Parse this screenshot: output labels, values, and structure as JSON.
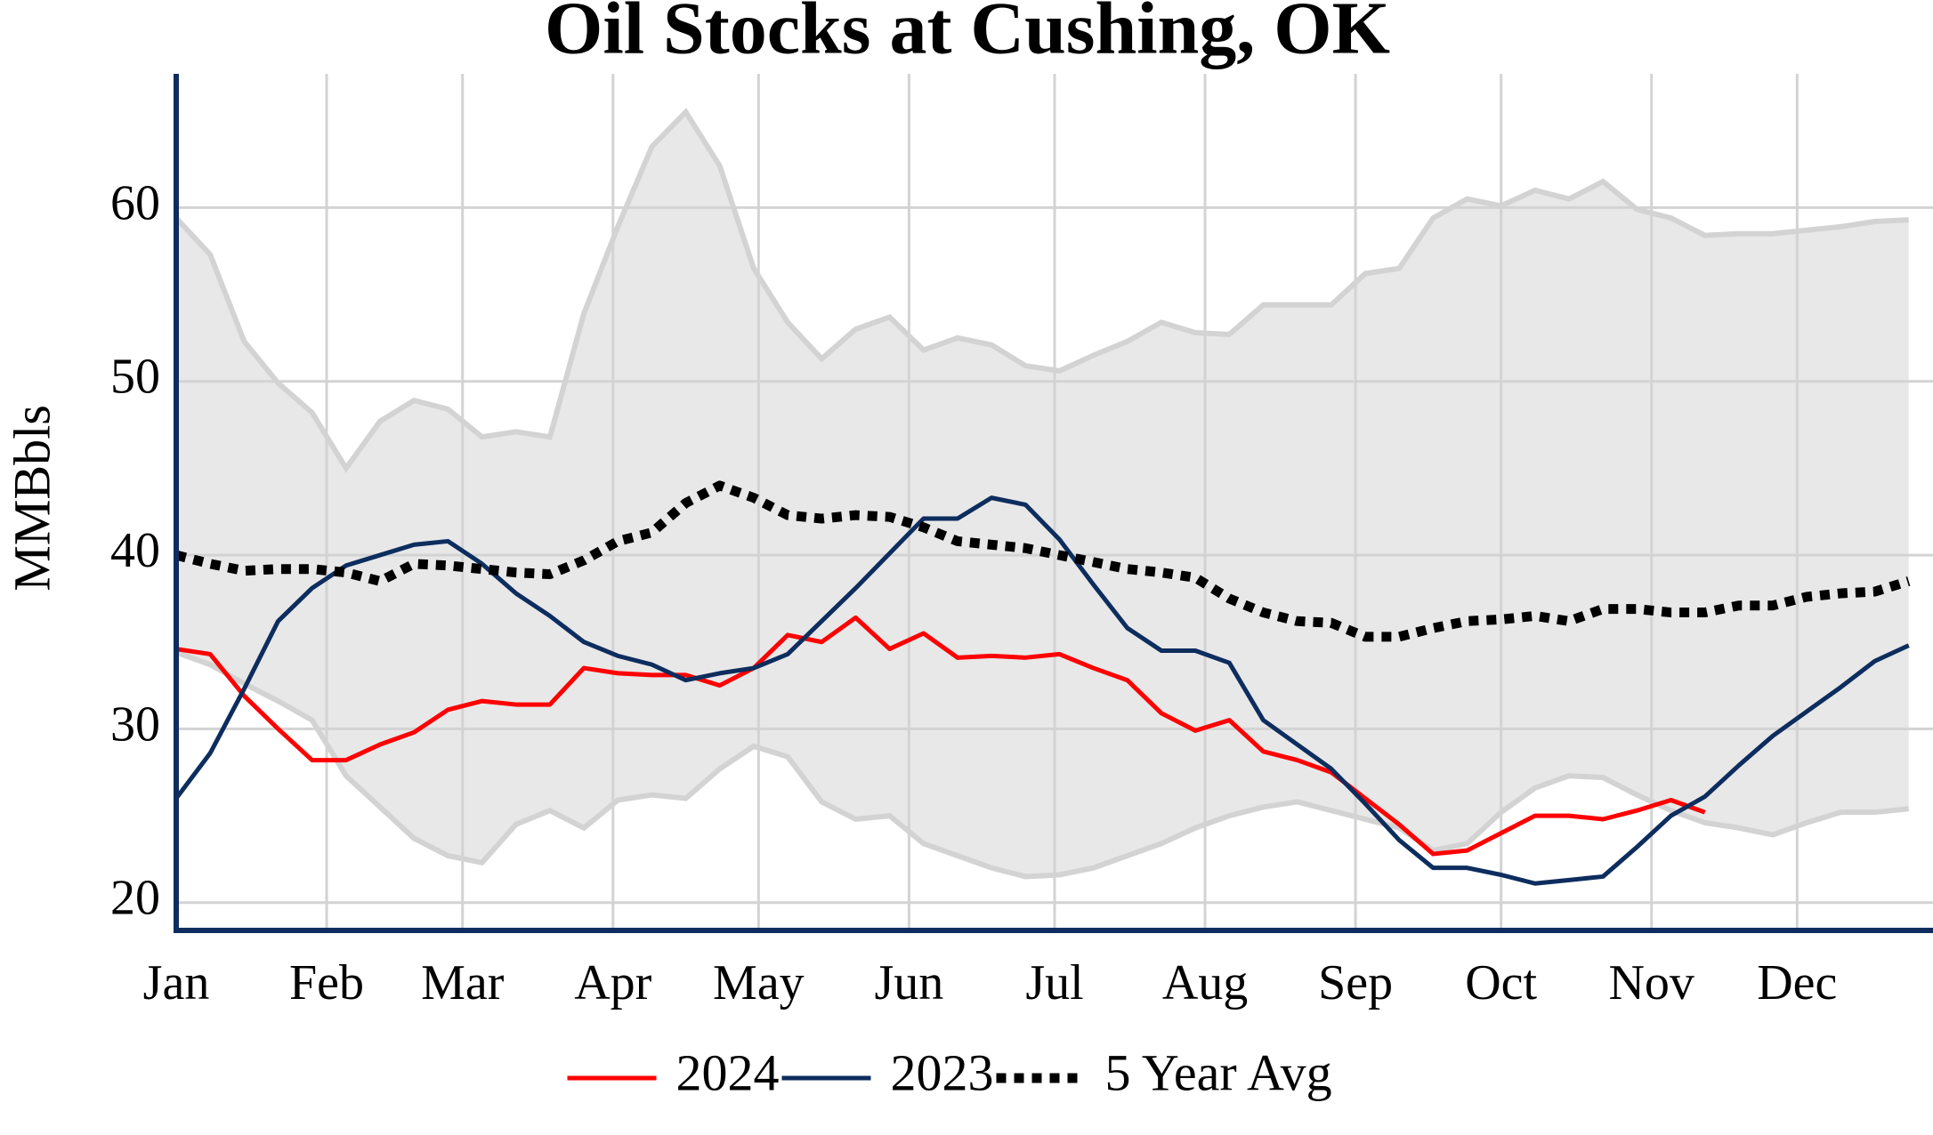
{
  "chart_data": {
    "type": "line",
    "title": "Oil Stocks at Cushing, OK",
    "y_label": "MMBbls",
    "xlim": [
      0,
      362
    ],
    "xticks": [
      {
        "value": 0,
        "label": "Jan"
      },
      {
        "value": 31,
        "label": "Feb"
      },
      {
        "value": 59,
        "label": "Mar"
      },
      {
        "value": 90,
        "label": "Apr"
      },
      {
        "value": 120,
        "label": "May"
      },
      {
        "value": 151,
        "label": "Jun"
      },
      {
        "value": 181,
        "label": "Jul"
      },
      {
        "value": 212,
        "label": "Aug"
      },
      {
        "value": 243,
        "label": "Sep"
      },
      {
        "value": 273,
        "label": "Oct"
      },
      {
        "value": 304,
        "label": "Nov"
      },
      {
        "value": 334,
        "label": "Dec"
      }
    ],
    "ylim": [
      18.4,
      67.7
    ],
    "yticks": [
      20,
      30,
      40,
      50,
      60
    ],
    "grid": true,
    "legend": "bottom",
    "x": [
      0,
      7,
      14,
      21,
      28,
      35,
      42,
      49,
      56,
      63,
      70,
      77,
      84,
      91,
      98,
      105,
      112,
      119,
      126,
      133,
      140,
      147,
      154,
      161,
      168,
      175,
      182,
      189,
      196,
      203,
      210,
      217,
      224,
      231,
      238,
      245,
      252,
      259,
      266,
      273,
      280,
      287,
      294,
      301,
      308,
      315,
      322,
      329,
      336,
      343,
      350,
      357
    ],
    "range": {
      "color": "#e8e8e8",
      "line_color": "#d3d3d3",
      "upper": [
        59.4,
        57.3,
        52.3,
        49.9,
        48.2,
        45,
        47.7,
        48.9,
        48.4,
        46.8,
        47.1,
        46.8,
        53.9,
        58.9,
        63.5,
        65.5,
        62.4,
        56.5,
        53.4,
        51.3,
        53,
        53.7,
        51.8,
        52.5,
        52.1,
        50.9,
        50.6,
        51.5,
        52.3,
        53.4,
        52.8,
        52.7,
        54.4,
        54.4,
        54.4,
        56.2,
        56.5,
        59.4,
        60.5,
        60.1,
        61,
        60.5,
        61.5,
        59.9,
        59.4,
        58.4,
        58.5,
        58.5,
        58.7,
        58.9,
        59.2,
        59.3
      ],
      "lower": [
        34.4,
        33.7,
        32.6,
        31.6,
        30.5,
        27.3,
        25.5,
        23.7,
        22.7,
        22.3,
        24.5,
        25.3,
        24.3,
        25.9,
        26.2,
        26,
        27.7,
        29,
        28.4,
        25.8,
        24.8,
        25,
        23.4,
        22.7,
        22,
        21.5,
        21.6,
        22,
        22.7,
        23.4,
        24.3,
        25,
        25.5,
        25.8,
        25.3,
        24.8,
        24.3,
        23,
        23.4,
        25.2,
        26.6,
        27.3,
        27.2,
        26.2,
        25.3,
        24.6,
        24.3,
        23.9,
        24.6,
        25.2,
        25.2,
        25.4
      ]
    },
    "series": [
      {
        "name": "2024",
        "color": "#ff0000",
        "style": "solid",
        "values": [
          34.6,
          34.3,
          31.9,
          30,
          28.2,
          28.2,
          29.1,
          29.8,
          31.1,
          31.6,
          31.4,
          31.4,
          33.5,
          33.2,
          33.1,
          33.1,
          32.5,
          33.5,
          35.4,
          35,
          36.4,
          34.6,
          35.5,
          34.1,
          34.2,
          34.1,
          34.3,
          33.5,
          32.8,
          30.9,
          29.9,
          30.5,
          28.7,
          28.2,
          27.5,
          26,
          24.5,
          22.8,
          23,
          24,
          25,
          25,
          24.8,
          25.3,
          25.9,
          25.2,
          null,
          null,
          null,
          null,
          null,
          null
        ]
      },
      {
        "name": "2023",
        "color": "#0d2d5e",
        "style": "solid",
        "values": [
          26,
          28.6,
          32.3,
          36.2,
          38.1,
          39.4,
          40,
          40.6,
          40.8,
          39.5,
          37.8,
          36.5,
          35,
          34.2,
          33.7,
          32.8,
          33.2,
          33.5,
          34.3,
          36.2,
          38.1,
          40.1,
          42.1,
          42.1,
          43.3,
          42.9,
          40.9,
          38.3,
          35.8,
          34.5,
          34.5,
          33.8,
          30.5,
          29.1,
          27.7,
          25.7,
          23.6,
          22,
          22,
          21.6,
          21.1,
          21.3,
          21.5,
          23.2,
          25,
          26.1,
          27.9,
          29.6,
          31,
          32.4,
          33.9,
          34.8
        ]
      },
      {
        "name": "5 Year Avg",
        "color": "#000000",
        "style": "dotted",
        "values": [
          40,
          39.5,
          39.1,
          39.2,
          39.2,
          39,
          38.5,
          39.5,
          39.4,
          39.2,
          39,
          38.9,
          39.7,
          40.8,
          41.3,
          43,
          44,
          43.3,
          42.3,
          42.1,
          42.3,
          42.2,
          41.6,
          40.8,
          40.6,
          40.4,
          40,
          39.6,
          39.2,
          39,
          38.7,
          37.5,
          36.7,
          36.2,
          36.1,
          35.3,
          35.3,
          35.8,
          36.2,
          36.3,
          36.5,
          36.2,
          36.9,
          36.9,
          36.7,
          36.7,
          37.1,
          37.1,
          37.6,
          37.8,
          37.9,
          38.5
        ]
      }
    ]
  }
}
